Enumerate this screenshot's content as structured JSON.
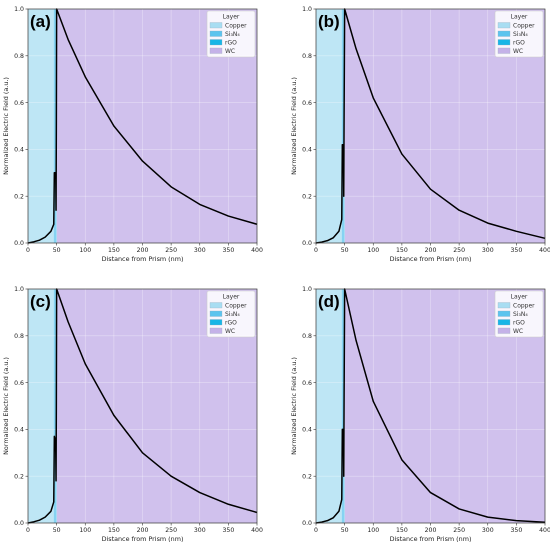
{
  "chart_data": [
    {
      "panel_label": "(a)",
      "type": "line",
      "xlabel": "Distance from Prism (nm)",
      "ylabel": "Normalized Electric Field (a.u.)",
      "xlim": [
        0,
        400
      ],
      "ylim": [
        0,
        1.0
      ],
      "xticks": [
        0,
        50,
        100,
        150,
        200,
        250,
        300,
        350,
        400
      ],
      "yticks": [
        0.0,
        0.2,
        0.4,
        0.6,
        0.8,
        1.0
      ],
      "legend": {
        "title": "Layer",
        "position": "top-right",
        "entries": [
          {
            "label": "Copper",
            "color": "#a8ddf2"
          },
          {
            "label": "Si₃N₄",
            "color": "#5cc4ee"
          },
          {
            "label": "rGO",
            "color": "#18b6e6"
          },
          {
            "label": "WC",
            "color": "#c4b2e8"
          }
        ]
      },
      "layer_regions": [
        {
          "layer": "Copper",
          "x_start": 0,
          "x_end": 45
        },
        {
          "layer": "Si₃N₄",
          "x_start": 45,
          "x_end": 49
        },
        {
          "layer": "rGO",
          "x_start": 49,
          "x_end": 50
        },
        {
          "layer": "WC",
          "x_start": 50,
          "x_end": 400
        }
      ],
      "series": [
        {
          "points": [
            [
              0,
              0.0
            ],
            [
              10,
              0.005
            ],
            [
              20,
              0.012
            ],
            [
              30,
              0.025
            ],
            [
              40,
              0.05
            ],
            [
              45,
              0.08
            ],
            [
              46,
              0.3
            ],
            [
              48,
              0.3
            ],
            [
              48.5,
              0.28
            ],
            [
              49,
              0.14
            ],
            [
              49.5,
              0.5
            ],
            [
              50,
              1.0
            ],
            [
              70,
              0.87
            ],
            [
              100,
              0.71
            ],
            [
              150,
              0.5
            ],
            [
              200,
              0.35
            ],
            [
              250,
              0.24
            ],
            [
              300,
              0.165
            ],
            [
              350,
              0.115
            ],
            [
              400,
              0.08
            ]
          ]
        }
      ]
    },
    {
      "panel_label": "(b)",
      "type": "line",
      "xlabel": "Distance from Prism (nm)",
      "ylabel": "Normalized Electric Field (a.u.)",
      "xlim": [
        0,
        400
      ],
      "ylim": [
        0,
        1.0
      ],
      "xticks": [
        0,
        50,
        100,
        150,
        200,
        250,
        300,
        350,
        400
      ],
      "yticks": [
        0.0,
        0.2,
        0.4,
        0.6,
        0.8,
        1.0
      ],
      "legend": {
        "title": "Layer",
        "position": "top-right",
        "entries": [
          {
            "label": "Copper",
            "color": "#a8ddf2"
          },
          {
            "label": "Si₃N₄",
            "color": "#5cc4ee"
          },
          {
            "label": "rGO",
            "color": "#18b6e6"
          },
          {
            "label": "WC",
            "color": "#c4b2e8"
          }
        ]
      },
      "layer_regions": [
        {
          "layer": "Copper",
          "x_start": 0,
          "x_end": 45
        },
        {
          "layer": "Si₃N₄",
          "x_start": 45,
          "x_end": 49
        },
        {
          "layer": "rGO",
          "x_start": 49,
          "x_end": 50
        },
        {
          "layer": "WC",
          "x_start": 50,
          "x_end": 400
        }
      ],
      "series": [
        {
          "points": [
            [
              0,
              0.0
            ],
            [
              10,
              0.004
            ],
            [
              20,
              0.01
            ],
            [
              30,
              0.022
            ],
            [
              40,
              0.05
            ],
            [
              45,
              0.1
            ],
            [
              46,
              0.42
            ],
            [
              47,
              0.42
            ],
            [
              48,
              0.4
            ],
            [
              48.5,
              0.2
            ],
            [
              49,
              0.5
            ],
            [
              50,
              1.0
            ],
            [
              70,
              0.83
            ],
            [
              100,
              0.62
            ],
            [
              150,
              0.38
            ],
            [
              200,
              0.23
            ],
            [
              250,
              0.14
            ],
            [
              300,
              0.085
            ],
            [
              350,
              0.05
            ],
            [
              400,
              0.02
            ]
          ]
        }
      ]
    },
    {
      "panel_label": "(c)",
      "type": "line",
      "xlabel": "Distance from Prism (nm)",
      "ylabel": "Normalized Electric Field (a.u.)",
      "xlim": [
        0,
        400
      ],
      "ylim": [
        0,
        1.0
      ],
      "xticks": [
        0,
        50,
        100,
        150,
        200,
        250,
        300,
        350,
        400
      ],
      "yticks": [
        0.0,
        0.2,
        0.4,
        0.6,
        0.8,
        1.0
      ],
      "legend": {
        "title": "Layer",
        "position": "top-right",
        "entries": [
          {
            "label": "Copper",
            "color": "#a8ddf2"
          },
          {
            "label": "Si₃N₄",
            "color": "#5cc4ee"
          },
          {
            "label": "rGO",
            "color": "#18b6e6"
          },
          {
            "label": "WC",
            "color": "#c4b2e8"
          }
        ]
      },
      "layer_regions": [
        {
          "layer": "Copper",
          "x_start": 0,
          "x_end": 45
        },
        {
          "layer": "Si₃N₄",
          "x_start": 45,
          "x_end": 49
        },
        {
          "layer": "rGO",
          "x_start": 49,
          "x_end": 50
        },
        {
          "layer": "WC",
          "x_start": 50,
          "x_end": 400
        }
      ],
      "series": [
        {
          "points": [
            [
              0,
              0.0
            ],
            [
              10,
              0.005
            ],
            [
              20,
              0.012
            ],
            [
              30,
              0.025
            ],
            [
              40,
              0.05
            ],
            [
              45,
              0.09
            ],
            [
              46,
              0.37
            ],
            [
              48,
              0.35
            ],
            [
              48.5,
              0.3
            ],
            [
              49,
              0.18
            ],
            [
              49.5,
              0.5
            ],
            [
              50,
              1.0
            ],
            [
              70,
              0.86
            ],
            [
              100,
              0.68
            ],
            [
              150,
              0.46
            ],
            [
              200,
              0.3
            ],
            [
              250,
              0.2
            ],
            [
              300,
              0.13
            ],
            [
              350,
              0.08
            ],
            [
              400,
              0.045
            ]
          ]
        }
      ]
    },
    {
      "panel_label": "(d)",
      "type": "line",
      "xlabel": "Distance from Prism (nm)",
      "ylabel": "Normalized Electric Field (a.u.)",
      "xlim": [
        0,
        400
      ],
      "ylim": [
        0,
        1.0
      ],
      "xticks": [
        0,
        50,
        100,
        150,
        200,
        250,
        300,
        350,
        400
      ],
      "yticks": [
        0.0,
        0.2,
        0.4,
        0.6,
        0.8,
        1.0
      ],
      "legend": {
        "title": "Layer",
        "position": "top-right",
        "entries": [
          {
            "label": "Copper",
            "color": "#a8ddf2"
          },
          {
            "label": "Si₃N₄",
            "color": "#5cc4ee"
          },
          {
            "label": "rGO",
            "color": "#18b6e6"
          },
          {
            "label": "WC",
            "color": "#c4b2e8"
          }
        ]
      },
      "layer_regions": [
        {
          "layer": "Copper",
          "x_start": 0,
          "x_end": 45
        },
        {
          "layer": "Si₃N₄",
          "x_start": 45,
          "x_end": 49
        },
        {
          "layer": "rGO",
          "x_start": 49,
          "x_end": 50
        },
        {
          "layer": "WC",
          "x_start": 50,
          "x_end": 400
        }
      ],
      "series": [
        {
          "points": [
            [
              0,
              0.0
            ],
            [
              10,
              0.004
            ],
            [
              20,
              0.01
            ],
            [
              30,
              0.022
            ],
            [
              40,
              0.05
            ],
            [
              45,
              0.1
            ],
            [
              46,
              0.4
            ],
            [
              47,
              0.4
            ],
            [
              48,
              0.38
            ],
            [
              48.5,
              0.2
            ],
            [
              49,
              0.5
            ],
            [
              50,
              1.0
            ],
            [
              70,
              0.78
            ],
            [
              100,
              0.52
            ],
            [
              150,
              0.27
            ],
            [
              200,
              0.13
            ],
            [
              250,
              0.06
            ],
            [
              300,
              0.025
            ],
            [
              350,
              0.01
            ],
            [
              400,
              0.003
            ]
          ]
        }
      ]
    }
  ]
}
